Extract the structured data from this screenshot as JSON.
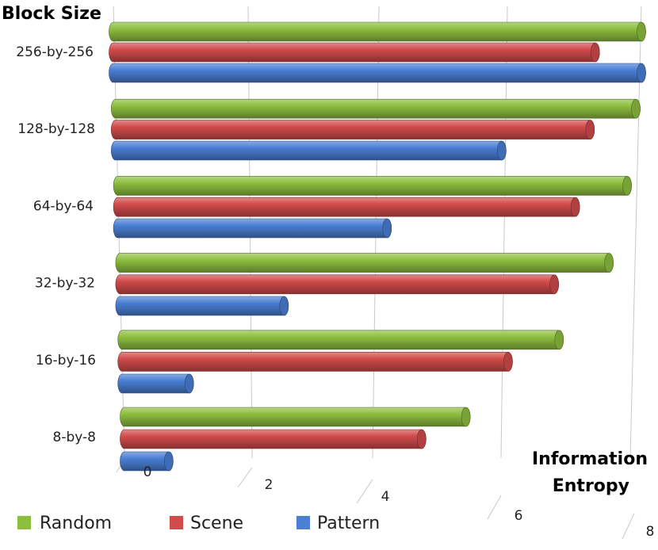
{
  "chart_data": {
    "type": "bar",
    "orientation": "horizontal",
    "style": "3d-cylinder",
    "y_axis_title": "Block Size",
    "x_axis_title_line1": "Information",
    "x_axis_title_line2": "Entropy",
    "categories": [
      "256-by-256",
      "128-by-128",
      "64-by-64",
      "32-by-32",
      "16-by-16",
      "8-by-8"
    ],
    "series": [
      {
        "name": "Random",
        "color": "#8dbf3f",
        "values": [
          8.0,
          7.95,
          7.85,
          7.6,
          6.85,
          5.4
        ]
      },
      {
        "name": "Scene",
        "color": "#d24b4b",
        "values": [
          7.3,
          7.25,
          7.05,
          6.75,
          6.05,
          4.7
        ]
      },
      {
        "name": "Pattern",
        "color": "#4a7fd4",
        "values": [
          8.0,
          5.9,
          4.15,
          2.55,
          1.05,
          0.7
        ]
      }
    ],
    "xlim": [
      0,
      8
    ],
    "x_ticks": [
      "0",
      "2",
      "4",
      "6",
      "8"
    ],
    "legend_position": "bottom-left",
    "grid": true
  }
}
